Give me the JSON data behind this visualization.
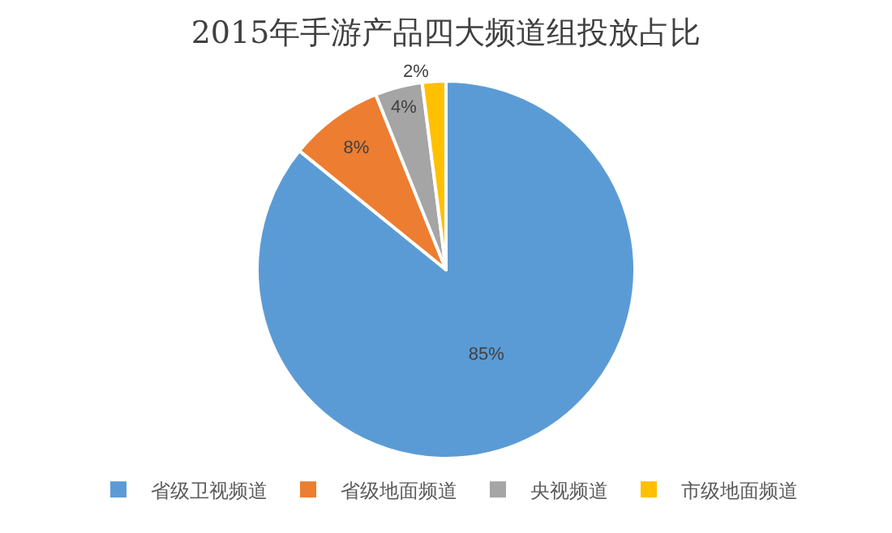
{
  "chart_data": {
    "type": "pie",
    "title": "2015年手游产品四大频道组投放占比",
    "categories": [
      "省级卫视频道",
      "省级地面频道",
      "央视频道",
      "市级地面频道"
    ],
    "values": [
      85,
      8,
      4,
      2
    ],
    "value_labels": [
      "85%",
      "8%",
      "4%",
      "2%"
    ],
    "colors": [
      "#5b9bd5",
      "#ed7d31",
      "#a5a5a5",
      "#ffc000"
    ],
    "legend": "bottom"
  }
}
